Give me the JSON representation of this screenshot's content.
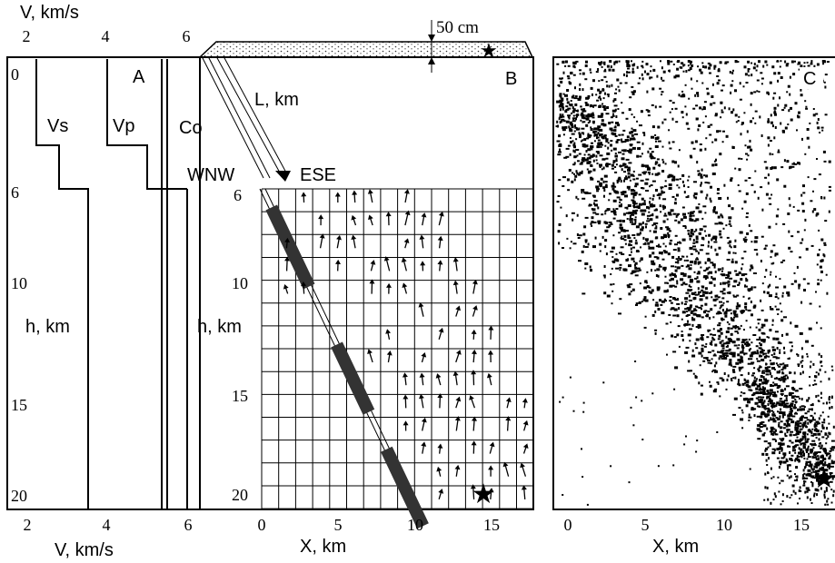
{
  "panel_a": {
    "letter": "A",
    "top_axis_label": "V,  km/s",
    "top_ticks": [
      "2",
      "4",
      "6"
    ],
    "bottom_ticks": [
      "2",
      "4",
      "6"
    ],
    "bottom_axis_label": "V, km/s",
    "depth_ticks": [
      "0",
      "6",
      "10",
      "15",
      "20"
    ],
    "depth_label": "h, km",
    "vs_label": "Vs",
    "vp_label": "Vp",
    "co_label": "Co"
  },
  "panel_b": {
    "letter": "B",
    "scale_label": "50 cm",
    "l_label": "L, km",
    "wnw_label": "WNW",
    "ese_label": "ESE",
    "depth_ticks": [
      "6",
      "10",
      "15",
      "20"
    ],
    "depth_label": "h, km",
    "x_ticks": [
      "0",
      "5",
      "10",
      "15"
    ],
    "x_label": "X, km"
  },
  "panel_c": {
    "letter": "C",
    "x_ticks": [
      "0",
      "5",
      "10",
      "15"
    ],
    "x_label": "X, km"
  },
  "chart_data": {
    "type": "diagram",
    "velocity_profile": {
      "depth_km": [
        0,
        3,
        5,
        6,
        20
      ],
      "vs_km_s": [
        2.4,
        2.4,
        2.9,
        3.6,
        3.6
      ],
      "vp_km_s": [
        4.2,
        4.2,
        5.0,
        5.5,
        5.5
      ],
      "xlim": [
        2,
        6
      ],
      "ylim": [
        0,
        20
      ]
    },
    "fault_segments_depth_km": [
      [
        6.8,
        10.2
      ],
      [
        12.7,
        15.6
      ],
      [
        17.2,
        20.5
      ]
    ],
    "hypocenter": {
      "x_km": 14.8,
      "depth_km": 19.2
    },
    "b_xlim": [
      0,
      17
    ],
    "b_ylim": [
      6,
      21
    ],
    "c_xlim": [
      0,
      17
    ]
  }
}
